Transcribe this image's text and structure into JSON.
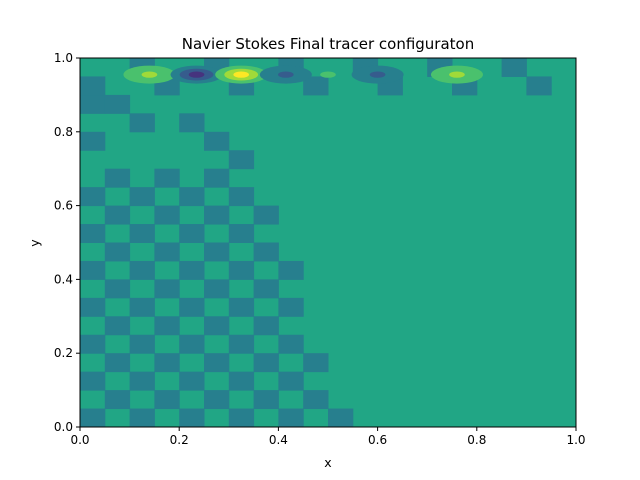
{
  "chart_data": {
    "type": "heatmap",
    "subtype": "filled-contour",
    "title": "Navier Stokes Final tracer configuraton",
    "xlabel": "x",
    "ylabel": "y",
    "xlim": [
      0.0,
      1.0
    ],
    "ylim": [
      0.0,
      1.0
    ],
    "xticks": [
      "0.0",
      "0.2",
      "0.4",
      "0.6",
      "0.8",
      "1.0"
    ],
    "yticks": [
      "0.0",
      "0.2",
      "0.4",
      "0.6",
      "0.8",
      "1.0"
    ],
    "grid": false,
    "colormap": "viridis",
    "background_level_color": "#21a685",
    "colors": {
      "deep": "#46337e",
      "dark": "#365c8d",
      "mid_low": "#277f8e",
      "mid": "#21a685",
      "mid_high": "#4ac16d",
      "high": "#a0da39",
      "peak": "#fde725"
    },
    "features": {
      "checkerboard_region": "lower-left, bounded by a diagonal front from about (0.55, 0.0) to (0.35, 0.7)",
      "top_band": "alternating highs and lows along y = 0.95",
      "top_band_spots": [
        {
          "x": 0.14,
          "y": 0.955,
          "level": "high"
        },
        {
          "x": 0.235,
          "y": 0.955,
          "level": "deep"
        },
        {
          "x": 0.325,
          "y": 0.955,
          "level": "peak"
        },
        {
          "x": 0.415,
          "y": 0.955,
          "level": "dark"
        },
        {
          "x": 0.5,
          "y": 0.955,
          "level": "mid_high"
        },
        {
          "x": 0.6,
          "y": 0.955,
          "level": "dark"
        },
        {
          "x": 0.76,
          "y": 0.955,
          "level": "high"
        }
      ]
    }
  }
}
